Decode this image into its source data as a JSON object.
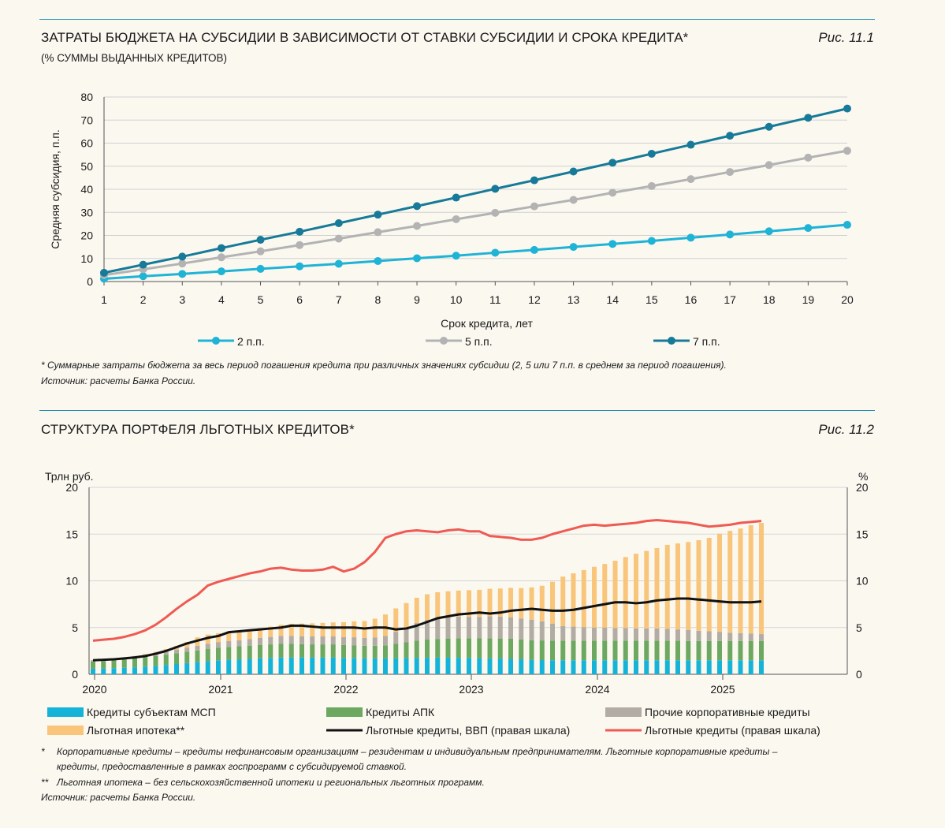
{
  "figure1": {
    "title": "ЗАТРАТЫ БЮДЖЕТА НА СУБСИДИИ В ЗАВИСИМОСТИ ОТ СТАВКИ СУБСИДИИ И СРОКА КРЕДИТА*",
    "subtitle": "(% СУММЫ ВЫДАННЫХ КРЕДИТОВ)",
    "figure_number": "Рис. 11.1",
    "note": "*   Суммарные затраты бюджета за весь период погашения кредита при различных значениях субсидии (2, 5 или 7 п.п. в среднем за период погашения).",
    "source": "Источник: расчеты Банка России."
  },
  "figure2": {
    "title": "СТРУКТУРА ПОРТФЕЛЯ ЛЬГОТНЫХ КРЕДИТОВ*",
    "figure_number": "Рис. 11.2",
    "notes": [
      {
        "mark": "*",
        "text": "Корпоративные кредиты – кредиты нефинансовым организациям – резидентам и индивидуальным предпринимателям. Льготные корпоративные кредиты –"
      },
      {
        "mark": "",
        "text": "кредиты, предоставленные в рамках госпрограмм с субсидируемой ставкой."
      },
      {
        "mark": "**",
        "text": "Льготная ипотека – без сельскохозяйственной ипотеки и региональных льготных программ."
      }
    ],
    "source": "Источник: расчеты Банка России."
  },
  "chart_data": [
    {
      "type": "line",
      "title": "ЗАТРАТЫ БЮДЖЕТА НА СУБСИДИИ В ЗАВИСИМОСТИ ОТ СТАВКИ СУБСИДИИ И СРОКА КРЕДИТА*",
      "xlabel": "Срок кредита, лет",
      "ylabel": "Средняя субсидия, п.п.",
      "x": [
        1,
        2,
        3,
        4,
        5,
        6,
        7,
        8,
        9,
        10,
        11,
        12,
        13,
        14,
        15,
        16,
        17,
        18,
        19,
        20
      ],
      "ylim": [
        0,
        80
      ],
      "yticks": [
        0,
        10,
        20,
        30,
        40,
        50,
        60,
        70,
        80
      ],
      "grid": true,
      "legend": "bottom",
      "series": [
        {
          "name": "2 п.п.",
          "color": "#1fb3d6",
          "values": [
            1.2,
            2.3,
            3.3,
            4.4,
            5.5,
            6.6,
            7.7,
            8.9,
            10.1,
            11.2,
            12.5,
            13.7,
            15.0,
            16.3,
            17.6,
            19.0,
            20.4,
            21.8,
            23.2,
            24.6
          ]
        },
        {
          "name": "5 п.п.",
          "color": "#b3b3b3",
          "values": [
            2.8,
            5.3,
            7.8,
            10.5,
            13.1,
            15.8,
            18.6,
            21.4,
            24.1,
            27.0,
            29.8,
            32.6,
            35.4,
            38.5,
            41.4,
            44.4,
            47.5,
            50.5,
            53.7,
            56.7
          ]
        },
        {
          "name": "7 п.п.",
          "color": "#167a98",
          "values": [
            3.8,
            7.3,
            10.8,
            14.5,
            18.1,
            21.6,
            25.3,
            29.0,
            32.7,
            36.4,
            40.2,
            43.9,
            47.7,
            51.5,
            55.4,
            59.3,
            63.2,
            67.1,
            71.0,
            75.0
          ]
        }
      ]
    },
    {
      "type": "bar",
      "stacked": true,
      "ylabel_left": "Трлн руб.",
      "ylabel_right": "%",
      "ylim_left": [
        0,
        20
      ],
      "ylim_right": [
        0,
        20
      ],
      "yticks": [
        0,
        5,
        10,
        15,
        20
      ],
      "x_axis": {
        "ticks": [
          "2020",
          "2021",
          "2022",
          "2023",
          "2024",
          "2025"
        ],
        "start": "2020-01",
        "months": 65
      },
      "grid": true,
      "legend": "bottom",
      "series": [
        {
          "name": "Кредиты субъектам МСП",
          "kind": "bar",
          "color": "#16b3d8",
          "axis": "left",
          "values": [
            0.6,
            0.62,
            0.66,
            0.7,
            0.75,
            0.82,
            0.9,
            1.0,
            1.1,
            1.2,
            1.3,
            1.4,
            1.5,
            1.55,
            1.6,
            1.65,
            1.7,
            1.75,
            1.8,
            1.8,
            1.8,
            1.8,
            1.8,
            1.8,
            1.75,
            1.75,
            1.7,
            1.7,
            1.7,
            1.7,
            1.72,
            1.74,
            1.76,
            1.78,
            1.78,
            1.76,
            1.75,
            1.72,
            1.7,
            1.68,
            1.65,
            1.6,
            1.55,
            1.52,
            1.5,
            1.5,
            1.5,
            1.5,
            1.5,
            1.5,
            1.5,
            1.5,
            1.5,
            1.5,
            1.5,
            1.5,
            1.5,
            1.5,
            1.5,
            1.5,
            1.5,
            1.5,
            1.5,
            1.5,
            1.5
          ]
        },
        {
          "name": "Кредиты АПК",
          "kind": "bar",
          "color": "#6ca85f",
          "axis": "left",
          "values": [
            0.75,
            0.78,
            0.82,
            0.88,
            0.94,
            1.0,
            1.05,
            1.1,
            1.15,
            1.2,
            1.25,
            1.3,
            1.35,
            1.38,
            1.4,
            1.42,
            1.45,
            1.45,
            1.45,
            1.45,
            1.42,
            1.4,
            1.4,
            1.4,
            1.38,
            1.36,
            1.35,
            1.35,
            1.4,
            1.55,
            1.7,
            1.85,
            1.95,
            2.0,
            2.05,
            2.1,
            2.1,
            2.12,
            2.15,
            2.15,
            2.15,
            2.12,
            2.1,
            2.1,
            2.1,
            2.1,
            2.1,
            2.1,
            2.1,
            2.1,
            2.1,
            2.1,
            2.1,
            2.1,
            2.1,
            2.1,
            2.1,
            2.05,
            2.05,
            2.05,
            2.05,
            2.05,
            2.05,
            2.05,
            2.05
          ]
        },
        {
          "name": "Прочие корпоративные кредиты",
          "kind": "bar",
          "color": "#b3aca5",
          "axis": "left",
          "values": [
            0.15,
            0.16,
            0.18,
            0.2,
            0.22,
            0.25,
            0.3,
            0.35,
            0.4,
            0.45,
            0.5,
            0.55,
            0.6,
            0.62,
            0.65,
            0.7,
            0.75,
            0.8,
            0.85,
            0.85,
            0.85,
            0.85,
            0.85,
            0.85,
            0.85,
            0.85,
            0.85,
            0.9,
            1.0,
            1.3,
            1.6,
            1.9,
            2.1,
            2.2,
            2.25,
            2.3,
            2.3,
            2.3,
            2.35,
            2.35,
            2.3,
            2.25,
            2.2,
            2.05,
            1.8,
            1.55,
            1.5,
            1.45,
            1.4,
            1.4,
            1.35,
            1.35,
            1.3,
            1.3,
            1.3,
            1.25,
            1.2,
            1.2,
            1.1,
            1.05,
            1.0,
            0.9,
            0.85,
            0.8,
            0.75
          ]
        },
        {
          "name": "Льготная ипотека**",
          "kind": "bar",
          "color": "#f9c57a",
          "axis": "left",
          "values": [
            0.0,
            0.0,
            0.0,
            0.02,
            0.05,
            0.1,
            0.15,
            0.25,
            0.4,
            0.6,
            0.9,
            1.0,
            0.95,
            0.95,
            0.95,
            1.0,
            1.05,
            1.1,
            1.2,
            1.3,
            1.35,
            1.4,
            1.45,
            1.5,
            1.6,
            1.7,
            1.8,
            2.0,
            2.3,
            2.5,
            2.6,
            2.7,
            2.75,
            2.8,
            2.8,
            2.8,
            2.85,
            2.9,
            2.95,
            3.0,
            3.15,
            3.25,
            3.45,
            3.8,
            4.5,
            5.3,
            5.7,
            6.1,
            6.5,
            6.8,
            7.2,
            7.6,
            8.0,
            8.3,
            8.6,
            9.0,
            9.2,
            9.4,
            9.7,
            10.0,
            10.5,
            10.9,
            11.2,
            11.6,
            11.9
          ]
        },
        {
          "name": "Льготные кредиты, ВВП (правая шкала)",
          "kind": "line",
          "color": "#111111",
          "axis": "right",
          "values": [
            1.5,
            1.55,
            1.6,
            1.7,
            1.8,
            1.95,
            2.2,
            2.5,
            2.9,
            3.3,
            3.6,
            3.9,
            4.1,
            4.5,
            4.6,
            4.7,
            4.8,
            4.9,
            5.0,
            5.2,
            5.2,
            5.1,
            5.0,
            5.0,
            5.0,
            5.0,
            4.9,
            5.0,
            5.0,
            4.8,
            4.9,
            5.2,
            5.6,
            6.0,
            6.2,
            6.4,
            6.5,
            6.6,
            6.5,
            6.6,
            6.8,
            6.9,
            7.0,
            6.9,
            6.8,
            6.8,
            6.9,
            7.1,
            7.3,
            7.5,
            7.7,
            7.7,
            7.6,
            7.7,
            7.9,
            8.0,
            8.1,
            8.1,
            8.0,
            7.9,
            7.8,
            7.7,
            7.7,
            7.7,
            7.8
          ]
        },
        {
          "name": "Льготные кредиты (правая шкала)",
          "kind": "line",
          "color": "#ef5a52",
          "axis": "right",
          "values": [
            3.6,
            3.7,
            3.8,
            4.0,
            4.3,
            4.7,
            5.3,
            6.1,
            7.0,
            7.8,
            8.5,
            9.5,
            9.9,
            10.2,
            10.5,
            10.8,
            11.0,
            11.3,
            11.4,
            11.2,
            11.1,
            11.1,
            11.2,
            11.5,
            11.0,
            11.3,
            12.0,
            13.1,
            14.6,
            15.0,
            15.3,
            15.4,
            15.3,
            15.2,
            15.4,
            15.5,
            15.3,
            15.3,
            14.8,
            14.7,
            14.6,
            14.4,
            14.4,
            14.6,
            15.0,
            15.3,
            15.6,
            15.9,
            16.0,
            15.9,
            16.0,
            16.1,
            16.2,
            16.4,
            16.5,
            16.4,
            16.3,
            16.2,
            16.0,
            15.8,
            15.9,
            16.0,
            16.2,
            16.3,
            16.4
          ]
        }
      ]
    }
  ]
}
